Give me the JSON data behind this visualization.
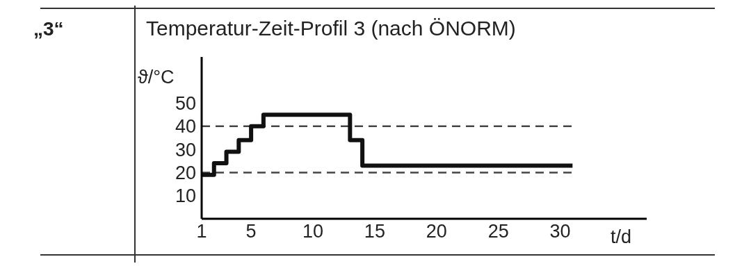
{
  "chart_data": {
    "type": "step",
    "title": "Temperatur-Zeit-Profil 3 (nach ÖNORM)",
    "annotations": [
      "„3“"
    ],
    "xlabel": "t/d",
    "ylabel": "ϑ/°C",
    "x": [
      1,
      2,
      3,
      4,
      5,
      6,
      13,
      14,
      31
    ],
    "series": [
      {
        "color": "#111111",
        "values": [
          19,
          24,
          29,
          34,
          40,
          45,
          34,
          23,
          23
        ]
      }
    ],
    "xlim": [
      1,
      37
    ],
    "xticks": [
      1,
      5,
      10,
      15,
      20,
      25,
      30
    ],
    "ylim": [
      0,
      70
    ],
    "yticks": [
      10,
      20,
      30,
      40,
      50
    ],
    "ref_lines": [
      {
        "axis": "y",
        "value": 40,
        "color": "#444444",
        "line_style": "dashed"
      },
      {
        "axis": "y",
        "value": 20,
        "color": "#444444",
        "line_style": "dashed"
      }
    ],
    "grid": false,
    "legend": false,
    "marker": "none",
    "line_style": "solid"
  }
}
